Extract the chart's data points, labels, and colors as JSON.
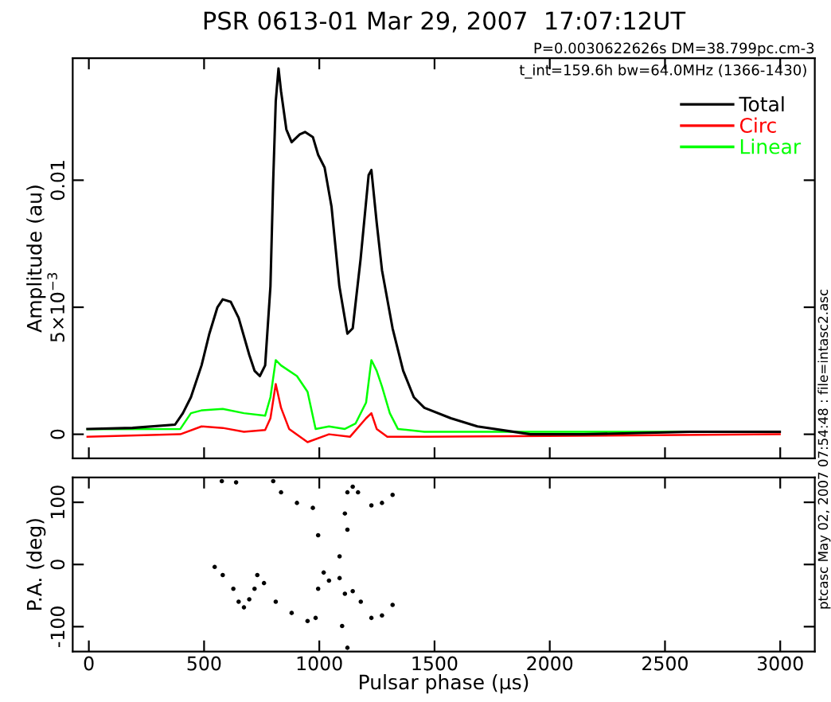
{
  "chart_data": [
    {
      "type": "line",
      "title": "PSR 0613-01 Mar 29, 2007  17:07:12UT",
      "ylabel": "Amplitude (au)",
      "annotations": [
        "P=0.0030622626s DM=38.799pc.cm-3",
        "t_int=159.6h bw=64.0MHz (1366-1430)",
        "ptcasc May 02, 2007 07:54:48 : file=intasc2.asc"
      ],
      "xlim": [
        -70,
        3150
      ],
      "xticks": [
        0,
        500,
        1000,
        1500,
        2000,
        2500,
        3000
      ],
      "ylim": [
        -0.00095,
        0.0148
      ],
      "yticks": [
        0,
        {
          "value": 0.005,
          "label": "5×10$^{−3}$"
        },
        0.01
      ],
      "tick_labels": "y",
      "legend": "top right",
      "line_style": "solid",
      "marker": "none",
      "series": [
        {
          "name": "Total",
          "color": "#000000",
          "x": [
            -6,
            189,
            374,
            408,
            443,
            489,
            523,
            558,
            581,
            616,
            650,
            696,
            719,
            742,
            765,
            788,
            800,
            811,
            823,
            834,
            857,
            880,
            915,
            938,
            972,
            995,
            1023,
            1053,
            1087,
            1122,
            1145,
            1179,
            1214,
            1226,
            1249,
            1272,
            1318,
            1364,
            1410,
            1456,
            1571,
            1686,
            1916,
            2147,
            2607,
            2998
          ],
          "values": [
            0.00021,
            0.00025,
            0.00038,
            0.00083,
            0.00146,
            0.00271,
            0.00396,
            0.005,
            0.00531,
            0.00521,
            0.00458,
            0.00313,
            0.0025,
            0.00229,
            0.00271,
            0.00583,
            0.01,
            0.0131,
            0.0144,
            0.0135,
            0.012,
            0.0115,
            0.0118,
            0.0119,
            0.0117,
            0.011,
            0.0105,
            0.00896,
            0.00583,
            0.00396,
            0.00417,
            0.00688,
            0.0102,
            0.0104,
            0.00833,
            0.00646,
            0.00417,
            0.0025,
            0.00146,
            0.00104,
            0.00063,
            0.00031,
            0.0,
            0.0,
            0.0001,
            0.0001
          ]
        },
        {
          "name": "Circ",
          "color": "#ff0000",
          "x": [
            -6,
            397,
            489,
            581,
            673,
            765,
            788,
            811,
            834,
            869,
            949,
            1042,
            1133,
            1203,
            1226,
            1249,
            1295,
            1456,
            2998
          ],
          "values": [
            -0.0001,
            0.0,
            0.00031,
            0.00025,
            0.0001,
            0.00017,
            0.00063,
            0.00198,
            0.00104,
            0.00021,
            -0.00031,
            0.0,
            -0.0001,
            0.00063,
            0.00083,
            0.00021,
            -0.0001,
            -0.0001,
            0.0
          ]
        },
        {
          "name": "Linear",
          "color": "#00ff00",
          "x": [
            -6,
            397,
            443,
            489,
            581,
            673,
            765,
            788,
            811,
            834,
            903,
            949,
            984,
            1042,
            1111,
            1157,
            1203,
            1226,
            1249,
            1272,
            1306,
            1341,
            1456,
            2998
          ],
          "values": [
            0.0002,
            0.00021,
            0.00083,
            0.00094,
            0.001,
            0.00083,
            0.00073,
            0.00146,
            0.00292,
            0.00271,
            0.00229,
            0.00167,
            0.00021,
            0.00031,
            0.00021,
            0.00042,
            0.00125,
            0.00292,
            0.0025,
            0.00188,
            0.00083,
            0.00021,
            0.0001,
            0.0001
          ]
        }
      ]
    },
    {
      "type": "scatter",
      "xlabel": "Pulsar phase (μs)",
      "ylabel": "P.A. (deg)",
      "xlim": [
        -70,
        3150
      ],
      "xticks": [
        0,
        500,
        1000,
        1500,
        2000,
        2500,
        3000
      ],
      "ylim": [
        -140,
        140
      ],
      "yticks": [
        -100,
        0,
        100
      ],
      "marker": "circle",
      "series": [
        {
          "color": "#000000",
          "x": [
            546,
            581,
            627,
            650,
            673,
            696,
            719,
            731,
            577,
            639,
            800,
            834,
            903,
            972,
            760,
            811,
            880,
            949,
            984,
            995,
            995,
            1019,
            1042,
            1088,
            1111,
            1088,
            1122,
            1111,
            1122,
            1099,
            1122,
            1145,
            1168,
            1226,
            1272,
            1318,
            1145,
            1180,
            1226,
            1272,
            1318
          ],
          "values": [
            -4,
            -17,
            -39,
            -60,
            -69,
            -56,
            -39,
            -17,
            134,
            132,
            134,
            116,
            99,
            91,
            -30,
            -60,
            -78,
            -91,
            -86,
            47,
            -39,
            -13,
            -26,
            -22,
            -47,
            13,
            56,
            82,
            116,
            -99,
            -134,
            125,
            116,
            95,
            99,
            112,
            -43,
            -60,
            -86,
            -82,
            -65
          ]
        }
      ]
    }
  ]
}
